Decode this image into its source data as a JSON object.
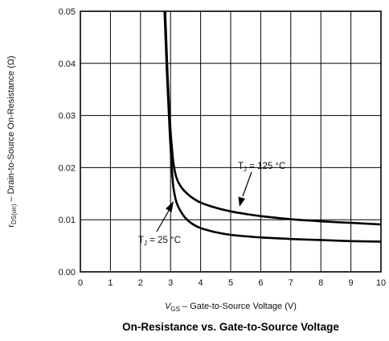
{
  "chart_data": {
    "type": "line",
    "title": "On-Resistance vs. Gate-to-Source Voltage",
    "xlabel": {
      "sym": "V",
      "sub": "GS",
      "text": " – Gate-to-Source Voltage (V)"
    },
    "ylabel": {
      "sym": "r",
      "sub": "DS(on)",
      "text": " – Drain-to-Source On-Resistance (Ω)"
    },
    "xlim": [
      0,
      10
    ],
    "ylim": [
      0,
      0.05
    ],
    "xticks": [
      "0",
      "1",
      "2",
      "3",
      "4",
      "5",
      "6",
      "7",
      "8",
      "9",
      "10"
    ],
    "yticks": [
      "0.00",
      "0.01",
      "0.02",
      "0.03",
      "0.04",
      "0.05"
    ],
    "grid": true,
    "series": [
      {
        "name": "TJ = 125 °C",
        "label": {
          "sym": "T",
          "sub": "J",
          "text": " = 125 °C"
        },
        "color": "#000000",
        "x": [
          2.82,
          2.86,
          2.9,
          2.95,
          3.0,
          3.05,
          3.1,
          3.2,
          3.35,
          3.5,
          3.7,
          4.0,
          4.5,
          5.0,
          5.5,
          6.0,
          7.0,
          8.0,
          9.0,
          10.0
        ],
        "y": [
          0.05,
          0.044,
          0.038,
          0.032,
          0.027,
          0.0235,
          0.0207,
          0.018,
          0.0163,
          0.0153,
          0.0143,
          0.0133,
          0.0123,
          0.0116,
          0.0111,
          0.0107,
          0.0101,
          0.0097,
          0.0094,
          0.0091
        ]
      },
      {
        "name": "TJ = 25 °C",
        "label": {
          "sym": "T",
          "sub": "J",
          "text": " = 25 °C"
        },
        "color": "#000000",
        "x": [
          2.8,
          2.84,
          2.88,
          2.93,
          2.98,
          3.02,
          3.06,
          3.1,
          3.2,
          3.35,
          3.5,
          3.7,
          4.0,
          4.5,
          5.0,
          6.0,
          7.0,
          8.0,
          9.0,
          10.0
        ],
        "y": [
          0.05,
          0.044,
          0.038,
          0.032,
          0.026,
          0.022,
          0.0185,
          0.016,
          0.0133,
          0.0115,
          0.0103,
          0.0093,
          0.0084,
          0.0076,
          0.0071,
          0.0066,
          0.0063,
          0.0061,
          0.0059,
          0.0058
        ]
      }
    ]
  }
}
